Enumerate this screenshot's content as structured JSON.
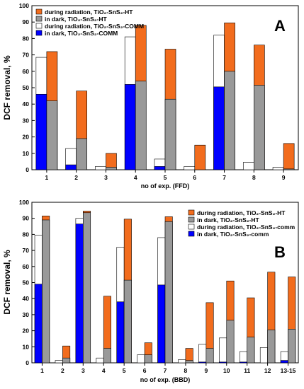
{
  "figure": "DCF removal bar charts",
  "chart_data": [
    {
      "type": "bar",
      "panel_label": "A",
      "xlabel": "no of exp. (FFD)",
      "ylabel": "DCF removal, %",
      "ylim": [
        0,
        100
      ],
      "yticks": [
        0,
        10,
        20,
        30,
        40,
        50,
        60,
        70,
        80,
        90,
        100
      ],
      "legend_position": "top-left",
      "categories": [
        "1",
        "2",
        "3",
        "4",
        "5",
        "6",
        "7",
        "8",
        "9"
      ],
      "comm": {
        "dark": [
          46,
          3,
          0,
          52,
          2,
          0,
          50.5,
          0,
          0
        ],
        "total": [
          68.5,
          13,
          2,
          81,
          6.5,
          2,
          82,
          4.5,
          1.5
        ]
      },
      "ht": {
        "dark": [
          42,
          19,
          1.5,
          54,
          43,
          0,
          60,
          51.5,
          0.5
        ],
        "total": [
          72,
          48,
          10,
          88,
          73.5,
          15,
          89.5,
          76,
          16
        ]
      },
      "legend": [
        {
          "key": "ht_rad",
          "label": "during radiation, TiO₂-SnS₂-HT",
          "color": "#f26c1d"
        },
        {
          "key": "ht_dark",
          "label": "in dark, TiO₂-SnS₂-HT",
          "color": "#999999"
        },
        {
          "key": "comm_rad",
          "label": "during radiation, TiO₂-SnS₂-COMM",
          "color": "#ffffff"
        },
        {
          "key": "comm_dark",
          "label": "in dark, TiO₂-SnS₂-COMM",
          "color": "#0000ff"
        }
      ]
    },
    {
      "type": "bar",
      "panel_label": "B",
      "xlabel": "no of exp. (BBD)",
      "ylabel": "DCF removal, %",
      "ylim": [
        0,
        100
      ],
      "yticks": [
        0,
        10,
        20,
        30,
        40,
        50,
        60,
        70,
        80,
        90,
        100
      ],
      "legend_position": "top-right",
      "categories": [
        "1",
        "2",
        "3",
        "4",
        "5",
        "6",
        "7",
        "8",
        "9",
        "10",
        "11",
        "12",
        "13-15"
      ],
      "comm": {
        "dark": [
          49,
          0,
          86.5,
          0,
          38,
          0,
          48.5,
          0,
          0.5,
          0.5,
          0.5,
          0,
          1.5
        ],
        "total": [
          79.5,
          1.5,
          90,
          3,
          72,
          5,
          78,
          2,
          11.5,
          15.5,
          7,
          9.5,
          7
        ]
      },
      "ht": {
        "dark": [
          89,
          3,
          93.5,
          9,
          51.5,
          5,
          88,
          1.5,
          9,
          26.5,
          16,
          20.5,
          21
        ],
        "total": [
          91.5,
          10.5,
          94.5,
          41.5,
          89.5,
          12.5,
          91,
          9,
          37.5,
          51,
          40.5,
          56.5,
          53.5
        ]
      },
      "legend": [
        {
          "key": "ht_rad",
          "label": "during radiation, TiO₂-SnS₂-HT",
          "color": "#f26c1d"
        },
        {
          "key": "ht_dark",
          "label": "in dark, TiO₂-SnS₂-HT",
          "color": "#999999"
        },
        {
          "key": "comm_rad",
          "label": "during radiation, TiO₂-SnS₂-comm",
          "color": "#ffffff"
        },
        {
          "key": "comm_dark",
          "label": "in dark, TiO₂-SnS₂-comm",
          "color": "#0000ff"
        }
      ]
    }
  ]
}
